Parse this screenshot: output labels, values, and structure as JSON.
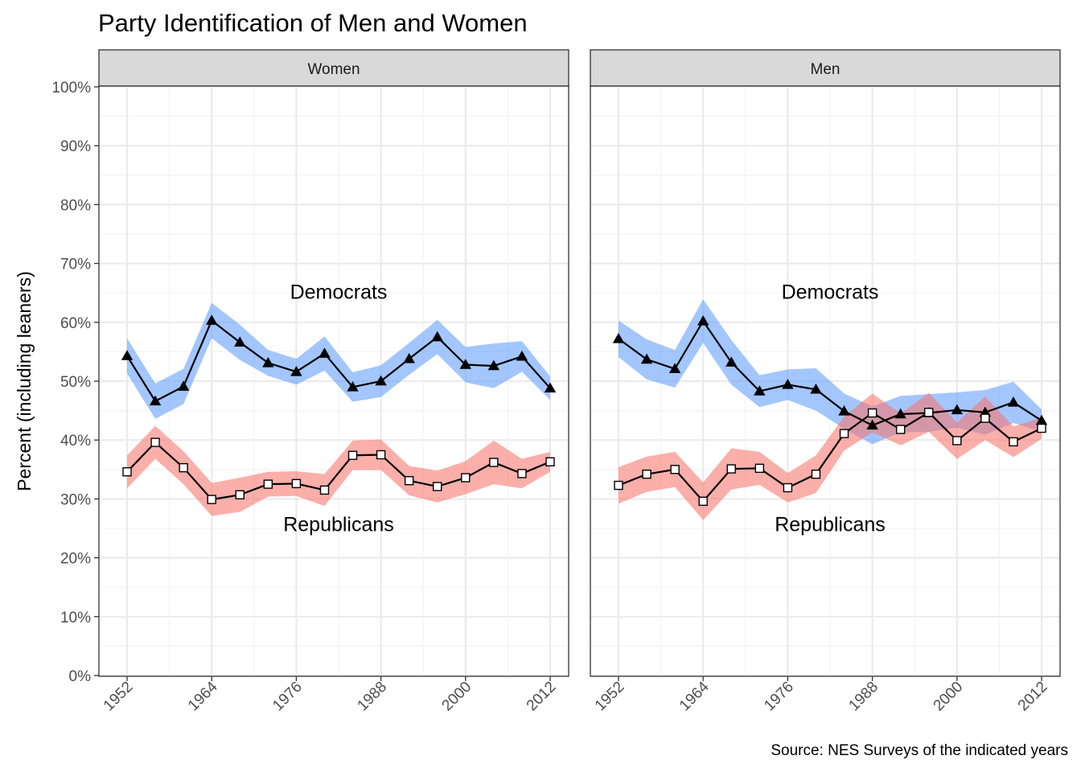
{
  "chart_data": {
    "type": "line",
    "title": "Party Identification of Men and Women",
    "ylabel": "Percent (including leaners)",
    "xlabel": "",
    "caption": "Source: NES Surveys of the indicated years",
    "ylim": [
      0,
      100
    ],
    "yticks": [
      0,
      10,
      20,
      30,
      40,
      50,
      60,
      70,
      80,
      90,
      100
    ],
    "ytick_labels": [
      "0%",
      "10%",
      "20%",
      "30%",
      "40%",
      "50%",
      "60%",
      "70%",
      "80%",
      "90%",
      "100%"
    ],
    "xlim": [
      1952,
      2012
    ],
    "xticks": [
      1952,
      1964,
      1976,
      1988,
      2000,
      2012
    ],
    "xtick_labels": [
      "1952",
      "1964",
      "1976",
      "1988",
      "2000",
      "2012"
    ],
    "grid": true,
    "colors": {
      "Democrats": "#619CFF",
      "Republicans": "#F8766D",
      "line": "#000000",
      "strip": "#d9d9d9",
      "grid": "#ebebeb"
    },
    "x": [
      1952,
      1956,
      1960,
      1964,
      1968,
      1972,
      1976,
      1980,
      1984,
      1988,
      1992,
      1996,
      2000,
      2004,
      2008,
      2012
    ],
    "panels": [
      {
        "name": "Women",
        "annotations": [
          {
            "text": "Democrats",
            "x": 1982,
            "y": 64
          },
          {
            "text": "Republicans",
            "x": 1982,
            "y": 24.5
          }
        ],
        "series": [
          {
            "name": "Democrats",
            "marker": "filled-triangle",
            "values": [
              54.3,
              46.6,
              49.1,
              60.3,
              56.6,
              53.1,
              51.6,
              54.7,
              49.0,
              50.0,
              53.8,
              57.5,
              52.8,
              52.6,
              54.2,
              48.8
            ],
            "lower": [
              51.3,
              43.6,
              46.1,
              57.3,
              53.6,
              50.9,
              49.4,
              51.8,
              46.5,
              47.3,
              51.1,
              54.6,
              49.8,
              48.8,
              51.6,
              46.8
            ],
            "upper": [
              57.3,
              49.6,
              52.1,
              63.3,
              59.6,
              55.3,
              53.8,
              57.6,
              51.5,
              52.7,
              56.5,
              60.4,
              55.8,
              56.4,
              56.8,
              50.8
            ]
          },
          {
            "name": "Republicans",
            "marker": "open-square",
            "values": [
              34.6,
              39.6,
              35.3,
              29.9,
              30.7,
              32.5,
              32.6,
              31.5,
              37.4,
              37.5,
              33.1,
              32.1,
              33.6,
              36.2,
              34.3,
              36.3
            ],
            "lower": [
              31.8,
              36.8,
              32.5,
              27.1,
              27.8,
              30.4,
              30.5,
              28.8,
              34.9,
              34.9,
              30.6,
              29.4,
              30.8,
              32.5,
              31.8,
              34.6
            ],
            "upper": [
              37.4,
              42.4,
              38.1,
              32.7,
              33.6,
              34.6,
              34.7,
              34.2,
              39.9,
              40.1,
              35.6,
              34.8,
              36.4,
              39.9,
              36.8,
              38.0
            ]
          }
        ]
      },
      {
        "name": "Men",
        "annotations": [
          {
            "text": "Democrats",
            "x": 1982,
            "y": 64
          },
          {
            "text": "Republicans",
            "x": 1982,
            "y": 24.5
          }
        ],
        "series": [
          {
            "name": "Democrats",
            "marker": "filled-triangle",
            "values": [
              57.2,
              53.7,
              52.1,
              60.2,
              53.2,
              48.3,
              49.4,
              48.6,
              44.9,
              42.5,
              44.4,
              44.6,
              45.1,
              44.7,
              46.4,
              43.3
            ],
            "lower": [
              54.1,
              50.3,
              48.9,
              56.5,
              49.4,
              45.6,
              46.8,
              45.0,
              41.9,
              39.3,
              41.3,
              41.4,
              42.1,
              40.9,
              42.9,
              41.4
            ],
            "upper": [
              60.3,
              57.1,
              55.3,
              63.9,
              57.0,
              51.0,
              52.0,
              52.2,
              47.9,
              45.7,
              47.5,
              47.8,
              48.1,
              48.5,
              49.9,
              45.2
            ]
          },
          {
            "name": "Republicans",
            "marker": "open-square",
            "values": [
              32.3,
              34.2,
              35.0,
              29.6,
              35.1,
              35.2,
              31.9,
              34.2,
              41.1,
              44.6,
              41.8,
              44.7,
              39.9,
              43.7,
              39.7,
              42.0
            ],
            "lower": [
              29.2,
              31.2,
              32.0,
              26.4,
              31.6,
              32.4,
              29.4,
              31.0,
              38.2,
              41.3,
              39.1,
              41.4,
              36.8,
              40.0,
              37.1,
              40.2
            ],
            "upper": [
              35.4,
              37.2,
              38.0,
              32.8,
              38.6,
              38.0,
              34.4,
              37.4,
              44.0,
              47.9,
              44.5,
              48.0,
              43.0,
              47.4,
              42.3,
              43.8
            ]
          }
        ]
      }
    ]
  }
}
